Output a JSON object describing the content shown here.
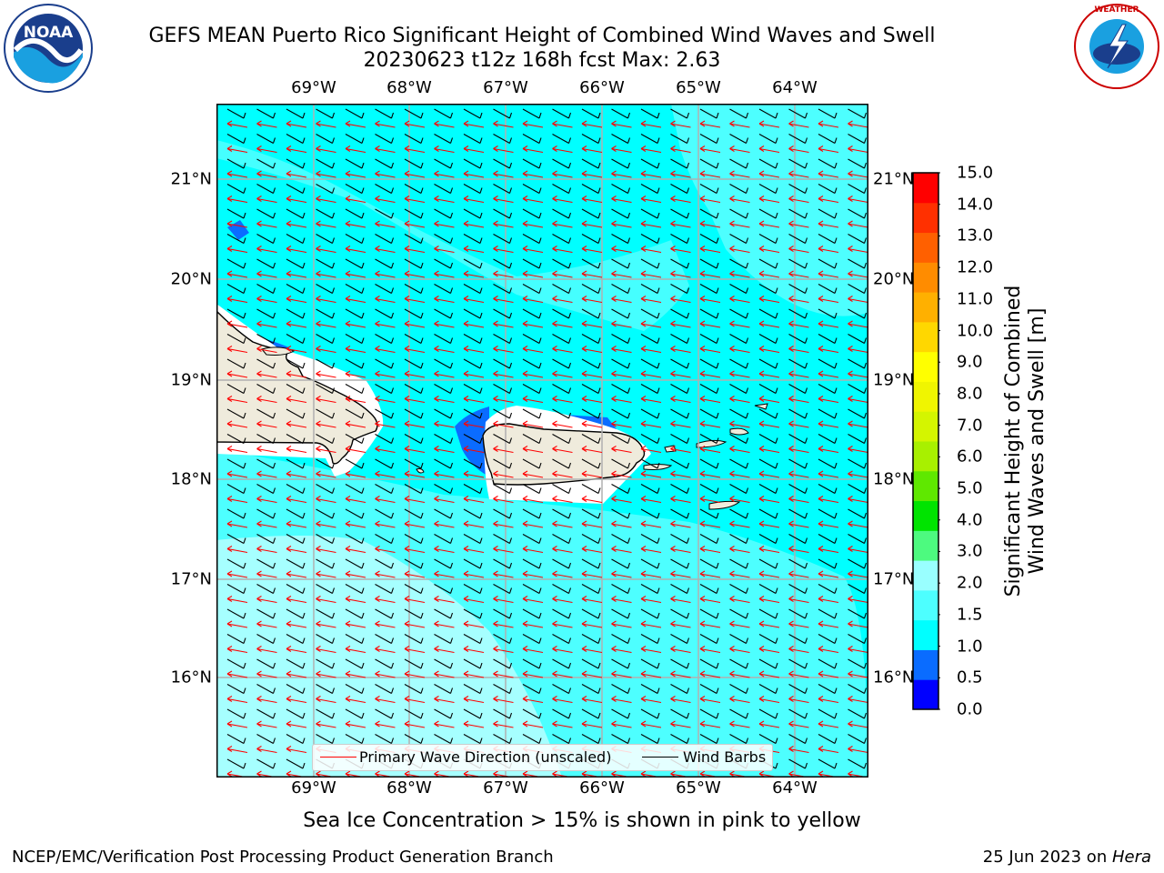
{
  "title_line1": "GEFS MEAN Puerto Rico Significant Height of Combined Wind Waves and Swell",
  "title_line2": "20230623 t12z 168h fcst   Max: 2.63",
  "logos": {
    "left": "NOAA",
    "right": "NATIONAL WEATHER SERVICE",
    "left_ring": "NATIONAL OCEANIC AND ATMOSPHERIC ADMINISTRATION · U.S. DEPARTMENT OF COMMERCE"
  },
  "longitude_labels": [
    "69°W",
    "68°W",
    "67°W",
    "66°W",
    "65°W",
    "64°W"
  ],
  "latitude_labels": [
    "21°N",
    "20°N",
    "19°N",
    "18°N",
    "17°N",
    "16°N"
  ],
  "colorbar": {
    "ticks": [
      "15.0",
      "14.0",
      "13.0",
      "12.0",
      "11.0",
      "10.0",
      "9.0",
      "8.0",
      "7.0",
      "6.0",
      "5.0",
      "4.0",
      "3.0",
      "2.0",
      "1.5",
      "1.0",
      "0.5",
      "0.0"
    ],
    "label_line1": "Significant Height of Combined",
    "label_line2": "Wind Waves and Swell [m]",
    "colors": [
      "#0000ff",
      "#0a6cff",
      "#00ffff",
      "#4dffff",
      "#99ffff",
      "#4dfa7f",
      "#00e400",
      "#5fe800",
      "#a8f000",
      "#d4f500",
      "#f0f500",
      "#ffff00",
      "#ffd700",
      "#ffb000",
      "#ff8c00",
      "#ff6000",
      "#ff3000",
      "#ff0000"
    ]
  },
  "legend": {
    "wave_label": "Primary Wave Direction (unscaled)",
    "barb_label": "Wind Barbs",
    "wave_color": "#ff0000",
    "barb_color": "#000000"
  },
  "note": "Sea Ice Concentration > 15% is shown in pink to yellow",
  "credit": "NCEP/EMC/Verification Post Processing Product Generation Branch",
  "date_prefix": "25 Jun 2023 on ",
  "date_host": "Hera",
  "map_colors": {
    "land": "#efebdc",
    "sea_1_1_5": "#00ffff",
    "sea_1_5_2": "#4dffff",
    "sea_2_3": "#a6ffff",
    "sea_0_5_1": "#0a6cff"
  }
}
